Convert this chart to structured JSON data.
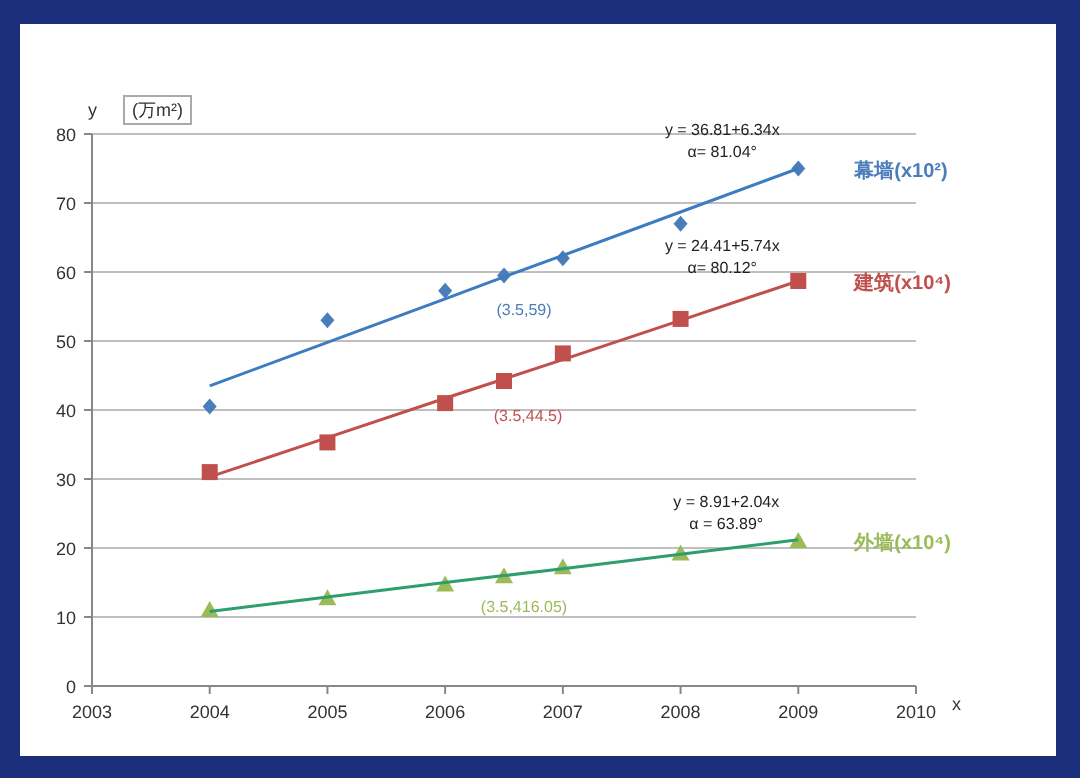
{
  "chart_data": {
    "type": "scatter",
    "xlabel": "x",
    "ylabel": "y",
    "xlim": [
      2003,
      2010
    ],
    "xticks": [
      2003,
      2004,
      2005,
      2006,
      2007,
      2008,
      2009,
      2010
    ],
    "ylim": [
      0,
      80
    ],
    "yticks": [
      0,
      10,
      20,
      30,
      40,
      50,
      60,
      70,
      80
    ],
    "grid": "y",
    "x": [
      2004,
      2005,
      2006,
      2006.5,
      2007,
      2008,
      2009
    ],
    "series": [
      {
        "name": "幕墙(x10²)",
        "color": "#4a7ebb",
        "marker": "diamond",
        "values": [
          40.5,
          53,
          57.3,
          59.5,
          62,
          67,
          75
        ]
      },
      {
        "name": "建筑(x10⁴)",
        "color": "#c0504d",
        "marker": "square",
        "values": [
          31,
          35.3,
          41,
          44.2,
          48.2,
          53.2,
          58.7
        ]
      },
      {
        "name": "外墙(x10⁴)",
        "color": "#9bbb59",
        "marker": "triangle",
        "values": [
          11,
          12.7,
          14.7,
          15.9,
          17.2,
          19.2,
          21
        ]
      },
      {
        "type": "line",
        "color": "#3d7cc0",
        "values": [
          43.5,
          49.8,
          56.1,
          59.3,
          62.4,
          68.7,
          75
        ]
      },
      {
        "type": "line",
        "color": "#c0504d",
        "values": [
          30.3,
          36,
          41.7,
          44.5,
          47.3,
          53,
          58.7
        ]
      },
      {
        "type": "line",
        "color": "#2e9e6e",
        "values": [
          10.8,
          12.9,
          15,
          16,
          17,
          19.1,
          21.2
        ]
      }
    ],
    "annotations": [
      "(万m²)",
      "y = 36.81+6.34x\nα= 81.04°",
      "y = 24.41+5.74x\nα= 80.12°",
      "y = 8.91+2.04x\nα = 63.89°",
      "(3.5,59)",
      "(3.5,44.5)",
      "(3.5,416.05)"
    ]
  }
}
